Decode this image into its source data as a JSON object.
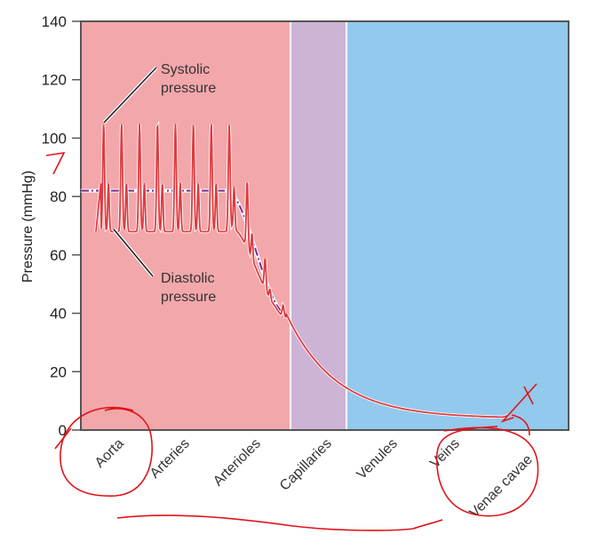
{
  "chart_data": {
    "type": "line",
    "ylabel": "Pressure (mmHg)",
    "ylim": [
      0,
      140
    ],
    "yticks": [
      0,
      20,
      40,
      60,
      80,
      100,
      120,
      140
    ],
    "categories": [
      "Aorta",
      "Arteries",
      "Arterioles",
      "Capillaries",
      "Venules",
      "Veins",
      "Venae cavae"
    ],
    "regions": [
      {
        "name": "arterial",
        "color": "#f2a7ab"
      },
      {
        "name": "capillary",
        "color": "#cdb4d6"
      },
      {
        "name": "venous",
        "color": "#92c9ec"
      }
    ],
    "series": [
      {
        "role": "pressure",
        "color": "#e03a3e",
        "systolic_peak": 105,
        "diastolic_trough": 68,
        "capillary_entry": 40,
        "venae_cavae_end": 4
      },
      {
        "role": "mean",
        "color": "#7b2a8c",
        "style": "dash-dot",
        "value_arterial": 82,
        "value_end": 40
      }
    ],
    "annotations": [
      {
        "lines": [
          "Systolic",
          "pressure"
        ],
        "target_value": 105
      },
      {
        "lines": [
          "Diastolic",
          "pressure"
        ],
        "target_value": 68
      }
    ],
    "grid": false,
    "handwritten_markings_color": "#e0141a"
  }
}
